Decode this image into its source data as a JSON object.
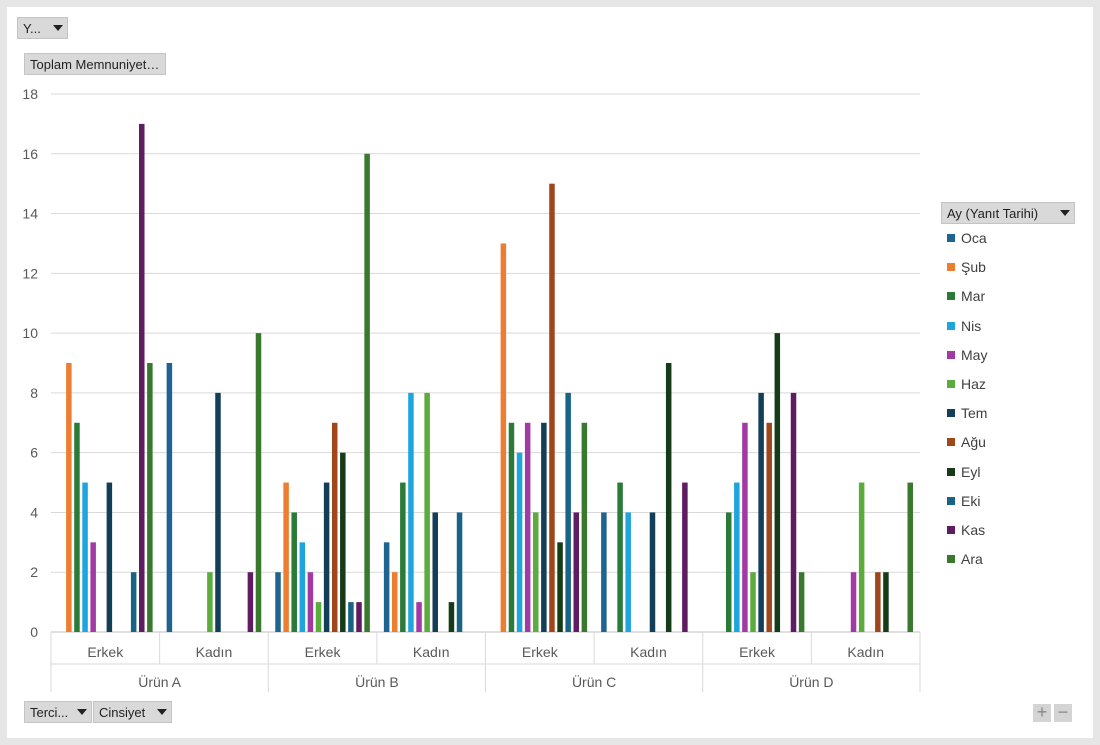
{
  "filters": {
    "top_field": "Y...",
    "value_field": "Toplam Memnuniyet ...",
    "legend_field": "Ay (Yanıt Tarihi)",
    "axis_fields": [
      "Terci...",
      "Cinsiyet"
    ]
  },
  "zoom": {
    "plus": "+",
    "minus": "−"
  },
  "colors": [
    "#1f6391",
    "#ed7d31",
    "#2a7a38",
    "#1ea5dd",
    "#a23aa3",
    "#5bab3d",
    "#123e58",
    "#a0461b",
    "#163b18",
    "#176486",
    "#5e1c61",
    "#38792e"
  ],
  "chart_data": {
    "type": "bar",
    "title": "",
    "xlabel": "",
    "ylabel": "",
    "ylim": [
      0,
      18
    ],
    "yticks": [
      0,
      2,
      4,
      6,
      8,
      10,
      12,
      14,
      16,
      18
    ],
    "grid": true,
    "legend_position": "right",
    "outer_categories": [
      "Ürün A",
      "Ürün B",
      "Ürün C",
      "Ürün D"
    ],
    "inner_categories": [
      "Erkek",
      "Kadın"
    ],
    "categories": [
      "Ürün A / Erkek",
      "Ürün A / Kadın",
      "Ürün B / Erkek",
      "Ürün B / Kadın",
      "Ürün C / Erkek",
      "Ürün C / Kadın",
      "Ürün D / Erkek",
      "Ürün D / Kadın"
    ],
    "series": [
      {
        "name": "Oca",
        "color": "#1f6391",
        "values": [
          null,
          9,
          2,
          3,
          null,
          4,
          null,
          null
        ]
      },
      {
        "name": "Şub",
        "color": "#ed7d31",
        "values": [
          9,
          null,
          5,
          2,
          13,
          null,
          null,
          null
        ]
      },
      {
        "name": "Mar",
        "color": "#2a7a38",
        "values": [
          7,
          null,
          4,
          5,
          7,
          5,
          4,
          null
        ]
      },
      {
        "name": "Nis",
        "color": "#1ea5dd",
        "values": [
          5,
          null,
          3,
          8,
          6,
          4,
          5,
          null
        ]
      },
      {
        "name": "May",
        "color": "#a23aa3",
        "values": [
          3,
          null,
          2,
          1,
          7,
          null,
          7,
          2
        ]
      },
      {
        "name": "Haz",
        "color": "#5bab3d",
        "values": [
          null,
          2,
          1,
          8,
          4,
          null,
          2,
          5
        ]
      },
      {
        "name": "Tem",
        "color": "#123e58",
        "values": [
          5,
          8,
          5,
          4,
          7,
          4,
          8,
          null
        ]
      },
      {
        "name": "Ağu",
        "color": "#a0461b",
        "values": [
          null,
          null,
          7,
          null,
          15,
          null,
          7,
          2
        ]
      },
      {
        "name": "Eyl",
        "color": "#163b18",
        "values": [
          null,
          null,
          6,
          1,
          3,
          9,
          10,
          2
        ]
      },
      {
        "name": "Eki",
        "color": "#176486",
        "values": [
          2,
          null,
          1,
          4,
          8,
          null,
          null,
          null
        ]
      },
      {
        "name": "Kas",
        "color": "#5e1c61",
        "values": [
          17,
          2,
          1,
          null,
          4,
          5,
          8,
          null
        ]
      },
      {
        "name": "Ara",
        "color": "#38792e",
        "values": [
          9,
          10,
          16,
          null,
          7,
          null,
          2,
          5
        ]
      }
    ]
  }
}
